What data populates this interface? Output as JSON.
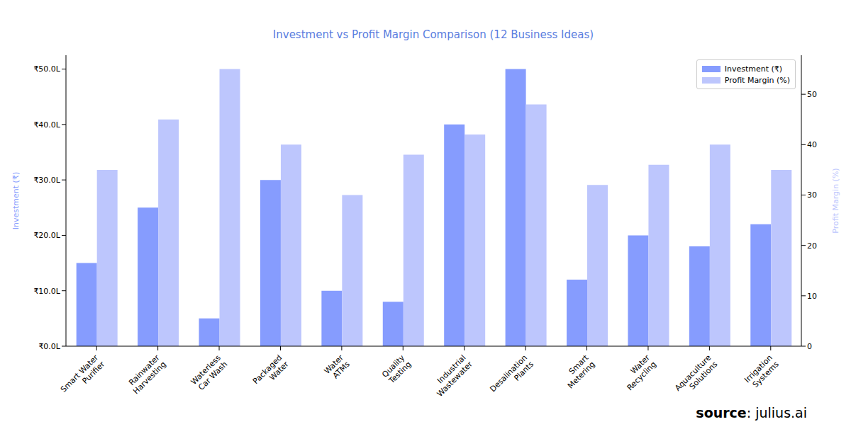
{
  "chart_data": {
    "type": "bar",
    "title": "Investment vs Profit Margin Comparison (12 Business Ideas)",
    "categories": [
      "Smart Water\nPurifier",
      "Rainwater\nHarvesting",
      "Waterless\nCar Wash",
      "Packaged\nWater",
      "Water\nATMs",
      "Quality\nTesting",
      "Industrial\nWastewater",
      "Desalination\nPlants",
      "Smart\nMetering",
      "Water\nRecycling",
      "Aquaculture\nSolutions",
      "Irrigation\nSystems"
    ],
    "series": [
      {
        "name": "Investment (₹)",
        "color": "#869cfe",
        "values": [
          15,
          25,
          5,
          30,
          10,
          8,
          40,
          50,
          12,
          20,
          18,
          22
        ]
      },
      {
        "name": "Profit Margin (%)",
        "color": "#bdc6fd",
        "axis": "y2",
        "values": [
          35,
          45,
          55,
          40,
          30,
          38,
          42,
          48,
          32,
          36,
          40,
          35
        ]
      }
    ],
    "y_label": "Investment (₹)",
    "y2_label": "Profit Margin (%)",
    "ylim": [
      0,
      52.5
    ],
    "yticks": [
      {
        "value": 0,
        "label": "₹0.0L"
      },
      {
        "value": 10,
        "label": "₹10.0L"
      },
      {
        "value": 20,
        "label": "₹20.0L"
      },
      {
        "value": 30,
        "label": "₹30.0L"
      },
      {
        "value": 40,
        "label": "₹40.0L"
      },
      {
        "value": 50,
        "label": "₹50.0L"
      }
    ],
    "y2lim": [
      0,
      57.75
    ],
    "y2ticks": [
      0,
      10,
      20,
      30,
      40,
      50
    ],
    "legend": "upper right",
    "grid": false,
    "source": "source: julius.ai"
  }
}
